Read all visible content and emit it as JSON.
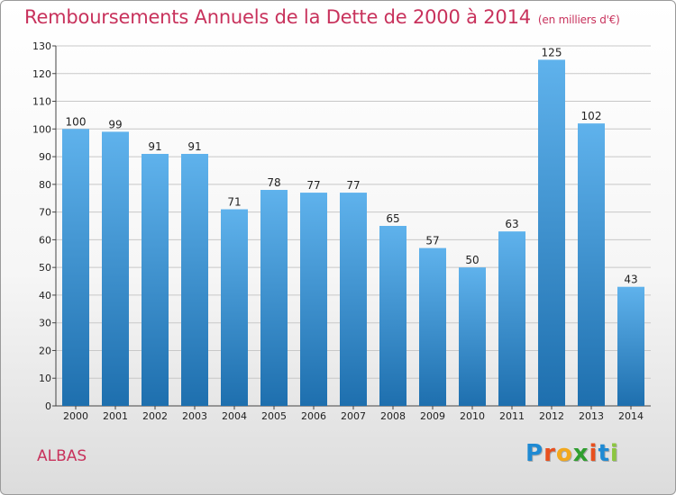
{
  "title": "Remboursements Annuels de la Dette de 2000 à 2014",
  "subtitle": "(en milliers d'€)",
  "commune": "ALBAS",
  "logo": {
    "text": "Proxiti",
    "letters": [
      "P",
      "r",
      "o",
      "x",
      "i",
      "t",
      "i"
    ],
    "colors": [
      "#1f8ad3",
      "#e8501e",
      "#f2a81d",
      "#2f9e2f",
      "#e8501e",
      "#1f8ad3",
      "#8cc63f"
    ]
  },
  "colors": {
    "title": "#c8325c",
    "bar_top": "#5fb2ec",
    "bar_bottom": "#1e6fae",
    "grid": "#c8c8c8"
  },
  "chart_data": {
    "type": "bar",
    "title": "Remboursements Annuels de la Dette de 2000 à 2014",
    "subtitle": "(en milliers d'€)",
    "xlabel": "",
    "ylabel": "",
    "categories": [
      "2000",
      "2001",
      "2002",
      "2003",
      "2004",
      "2005",
      "2006",
      "2007",
      "2008",
      "2009",
      "2010",
      "2011",
      "2012",
      "2013",
      "2014"
    ],
    "values": [
      100,
      99,
      91,
      91,
      71,
      78,
      77,
      77,
      65,
      57,
      50,
      63,
      125,
      102,
      43
    ],
    "ylim": [
      0,
      130
    ],
    "yticks": [
      0,
      10,
      20,
      30,
      40,
      50,
      60,
      70,
      80,
      90,
      100,
      110,
      120,
      130
    ],
    "grid": true,
    "data_labels": true
  }
}
